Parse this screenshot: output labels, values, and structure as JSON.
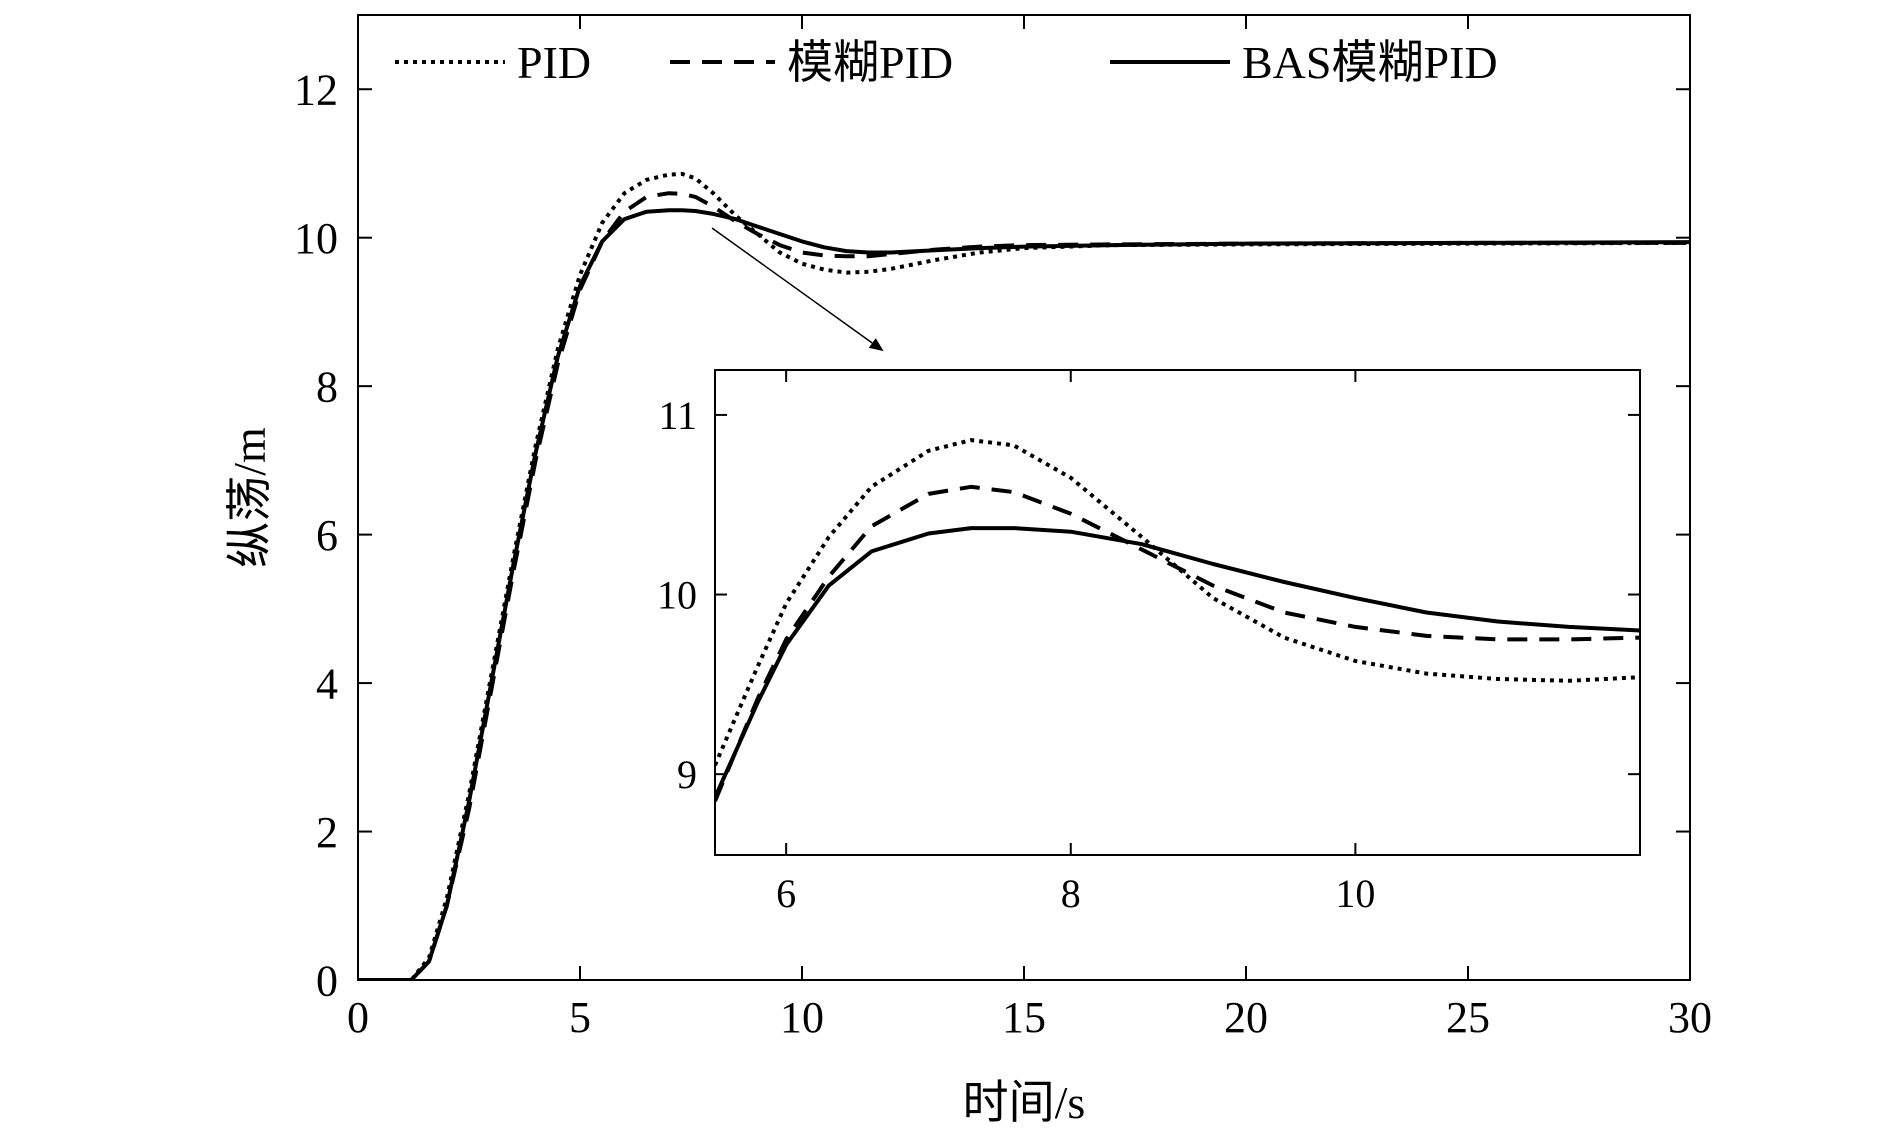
{
  "chart_data": [
    {
      "type": "line",
      "title": "",
      "xlabel": "时间/s",
      "ylabel": "纵荡/m",
      "xlim": [
        0,
        30
      ],
      "ylim": [
        0,
        13
      ],
      "xticks": [
        0,
        5,
        10,
        15,
        20,
        25,
        30
      ],
      "yticks": [
        0,
        2,
        4,
        6,
        8,
        10,
        12
      ],
      "grid": false,
      "legend_position": "top",
      "series": [
        {
          "name": "PID",
          "style": "dotted",
          "x": [
            0,
            1.2,
            1.6,
            2,
            2.5,
            3,
            3.5,
            4,
            4.5,
            5,
            5.5,
            6,
            6.5,
            7,
            7.3,
            7.6,
            8,
            8.5,
            9,
            9.5,
            10,
            10.5,
            11,
            11.5,
            12,
            13,
            14,
            15,
            17,
            20,
            25,
            30
          ],
          "y": [
            0,
            0,
            0.3,
            1.1,
            2.5,
            4.1,
            5.7,
            7.2,
            8.5,
            9.5,
            10.2,
            10.6,
            10.78,
            10.85,
            10.86,
            10.8,
            10.6,
            10.3,
            10.05,
            9.8,
            9.65,
            9.57,
            9.53,
            9.54,
            9.58,
            9.7,
            9.8,
            9.86,
            9.9,
            9.91,
            9.92,
            9.93
          ]
        },
        {
          "name": "模糊PID",
          "style": "dashed",
          "x": [
            0,
            1.2,
            1.6,
            2,
            2.5,
            3,
            3.5,
            4,
            4.5,
            5,
            5.5,
            6,
            6.5,
            7,
            7.3,
            7.6,
            8,
            8.5,
            9,
            9.5,
            10,
            10.5,
            11,
            11.5,
            12,
            13,
            14,
            15,
            17,
            20,
            25,
            30
          ],
          "y": [
            0,
            0,
            0.25,
            1.0,
            2.3,
            3.9,
            5.5,
            7.0,
            8.3,
            9.3,
            9.95,
            10.35,
            10.55,
            10.6,
            10.59,
            10.55,
            10.42,
            10.22,
            10.05,
            9.9,
            9.8,
            9.76,
            9.75,
            9.75,
            9.78,
            9.84,
            9.88,
            9.9,
            9.91,
            9.92,
            9.93,
            9.93
          ]
        },
        {
          "name": "BAS模糊PID",
          "style": "solid",
          "x": [
            0,
            1.2,
            1.6,
            2,
            2.5,
            3,
            3.5,
            4,
            4.5,
            5,
            5.5,
            6,
            6.5,
            7,
            7.3,
            7.6,
            8,
            8.5,
            9,
            9.5,
            10,
            10.5,
            11,
            11.5,
            12,
            13,
            14,
            15,
            17,
            20,
            25,
            30
          ],
          "y": [
            0,
            0,
            0.25,
            1.0,
            2.4,
            4.0,
            5.6,
            7.1,
            8.4,
            9.35,
            9.95,
            10.25,
            10.35,
            10.37,
            10.37,
            10.36,
            10.32,
            10.25,
            10.15,
            10.05,
            9.95,
            9.87,
            9.82,
            9.8,
            9.8,
            9.83,
            9.86,
            9.88,
            9.9,
            9.92,
            9.93,
            9.94
          ]
        }
      ]
    },
    {
      "type": "line",
      "title": "",
      "xlabel": "",
      "ylabel": "",
      "xlim": [
        5.5,
        12
      ],
      "ylim": [
        8.55,
        11.25
      ],
      "xticks": [
        6,
        8,
        10
      ],
      "yticks": [
        9,
        10,
        11
      ],
      "grid": false,
      "series": [
        {
          "name": "PID",
          "style": "dotted",
          "x": [
            5.5,
            5.8,
            6.0,
            6.3,
            6.6,
            7.0,
            7.3,
            7.6,
            8.0,
            8.5,
            9.0,
            9.5,
            10.0,
            10.5,
            11.0,
            11.5,
            12.0
          ],
          "y": [
            9.05,
            9.6,
            9.95,
            10.32,
            10.6,
            10.8,
            10.86,
            10.83,
            10.65,
            10.32,
            9.98,
            9.76,
            9.63,
            9.56,
            9.53,
            9.52,
            9.54
          ]
        },
        {
          "name": "模糊PID",
          "style": "dashed",
          "x": [
            5.5,
            5.8,
            6.0,
            6.3,
            6.6,
            7.0,
            7.3,
            7.6,
            8.0,
            8.5,
            9.0,
            9.5,
            10.0,
            10.5,
            11.0,
            11.5,
            12.0
          ],
          "y": [
            8.85,
            9.42,
            9.75,
            10.1,
            10.38,
            10.56,
            10.6,
            10.57,
            10.45,
            10.25,
            10.05,
            9.9,
            9.82,
            9.77,
            9.75,
            9.75,
            9.76
          ]
        },
        {
          "name": "BAS模糊PID",
          "style": "solid",
          "x": [
            5.5,
            5.8,
            6.0,
            6.3,
            6.6,
            7.0,
            7.3,
            7.6,
            8.0,
            8.5,
            9.0,
            9.5,
            10.0,
            10.5,
            11.0,
            11.5,
            12.0
          ],
          "y": [
            8.87,
            9.4,
            9.72,
            10.05,
            10.24,
            10.34,
            10.37,
            10.37,
            10.35,
            10.28,
            10.17,
            10.07,
            9.98,
            9.9,
            9.85,
            9.82,
            9.8
          ]
        }
      ]
    }
  ]
}
